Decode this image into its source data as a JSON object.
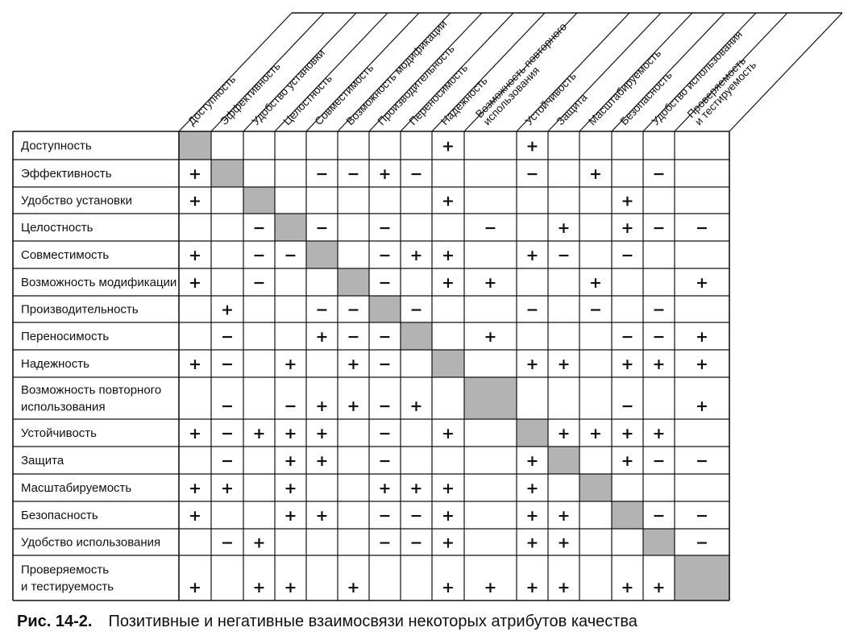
{
  "figure": {
    "caption_label": "Рис. 14-2.",
    "caption_text": "Позитивные и негативные взаимосвязи некоторых атрибутов качества"
  },
  "colors": {
    "diagonal": "#b3b3b3",
    "line": "#111111"
  },
  "matrix": {
    "columns": [
      [
        "Доступность"
      ],
      [
        "Эффективность"
      ],
      [
        "Удобство установки"
      ],
      [
        "Целостность"
      ],
      [
        "Совместимость"
      ],
      [
        "Возможность модификации"
      ],
      [
        "Производительность"
      ],
      [
        "Переносимость"
      ],
      [
        "Надежность"
      ],
      [
        "Возможность повторного",
        "использования"
      ],
      [
        "Устойчивость"
      ],
      [
        "Защита"
      ],
      [
        "Масштабируемость"
      ],
      [
        "Безопасность"
      ],
      [
        "Удобство использования"
      ],
      [
        "Проверяемость",
        "и тестируемость"
      ]
    ],
    "rows": [
      {
        "label": [
          "Доступность"
        ],
        "cells": [
          "",
          "",
          "",
          "",
          "",
          "",
          "",
          "",
          "+",
          "",
          "+",
          "",
          "",
          "",
          "",
          ""
        ]
      },
      {
        "label": [
          "Эффективность"
        ],
        "cells": [
          "+",
          "",
          "",
          "",
          "−",
          "−",
          "+",
          "−",
          "",
          "",
          "−",
          "",
          "+",
          "",
          "−",
          ""
        ]
      },
      {
        "label": [
          "Удобство установки"
        ],
        "cells": [
          "+",
          "",
          "",
          "",
          "",
          "",
          "",
          "",
          "+",
          "",
          "",
          "",
          "",
          "+",
          "",
          ""
        ]
      },
      {
        "label": [
          "Целостность"
        ],
        "cells": [
          "",
          "",
          "−",
          "",
          "−",
          "",
          "−",
          "",
          "",
          "−",
          "",
          "+",
          "",
          "+",
          "−",
          "−"
        ]
      },
      {
        "label": [
          "Совместимость"
        ],
        "cells": [
          "+",
          "",
          "−",
          "−",
          "",
          "",
          "−",
          "+",
          "+",
          "",
          "+",
          "−",
          "",
          "−",
          "",
          ""
        ]
      },
      {
        "label": [
          "Возможность модификации"
        ],
        "cells": [
          "+",
          "",
          "−",
          "",
          "",
          "",
          "−",
          "",
          "+",
          "+",
          "",
          "",
          "+",
          "",
          "",
          "+"
        ]
      },
      {
        "label": [
          "Производительность"
        ],
        "cells": [
          "",
          "+",
          "",
          "",
          "−",
          "−",
          "",
          "−",
          "",
          "",
          "−",
          "",
          "−",
          "",
          "−",
          ""
        ]
      },
      {
        "label": [
          "Переносимость"
        ],
        "cells": [
          "",
          "−",
          "",
          "",
          "+",
          "−",
          "−",
          "",
          "",
          "+",
          "",
          "",
          "",
          "−",
          "−",
          "+"
        ]
      },
      {
        "label": [
          "Надежность"
        ],
        "cells": [
          "+",
          "−",
          "",
          "+",
          "",
          "+",
          "−",
          "",
          "",
          "",
          "+",
          "+",
          "",
          "+",
          "+",
          "+"
        ]
      },
      {
        "label": [
          "Возможность повторного",
          "использования"
        ],
        "cells": [
          "",
          "−",
          "",
          "−",
          "+",
          "+",
          "−",
          "+",
          "",
          "",
          "",
          "",
          "",
          "−",
          "",
          "+"
        ]
      },
      {
        "label": [
          "Устойчивость"
        ],
        "cells": [
          "+",
          "−",
          "+",
          "+",
          "+",
          "",
          "−",
          "",
          "+",
          "",
          "",
          "+",
          "+",
          "+",
          "+",
          ""
        ]
      },
      {
        "label": [
          "Защита"
        ],
        "cells": [
          "",
          "−",
          "",
          "+",
          "+",
          "",
          "−",
          "",
          "",
          "",
          "+",
          "",
          "",
          "+",
          "−",
          "−"
        ]
      },
      {
        "label": [
          "Масштабируемость"
        ],
        "cells": [
          "+",
          "+",
          "",
          "+",
          "",
          "",
          "+",
          "+",
          "+",
          "",
          "+",
          "",
          "",
          "",
          "",
          ""
        ]
      },
      {
        "label": [
          "Безопасность"
        ],
        "cells": [
          "+",
          "",
          "",
          "+",
          "+",
          "",
          "−",
          "−",
          "+",
          "",
          "+",
          "+",
          "",
          "",
          "−",
          "−"
        ]
      },
      {
        "label": [
          "Удобство использования"
        ],
        "cells": [
          "",
          "−",
          "+",
          "",
          "",
          "",
          "−",
          "−",
          "+",
          "",
          "+",
          "+",
          "",
          "",
          "",
          "−"
        ]
      },
      {
        "label": [
          "Проверяемость",
          "и тестируемость"
        ],
        "cells": [
          "+",
          "",
          "+",
          "+",
          "",
          "+",
          "",
          "",
          "+",
          "+",
          "+",
          "+",
          "",
          "+",
          "+",
          ""
        ]
      }
    ]
  }
}
